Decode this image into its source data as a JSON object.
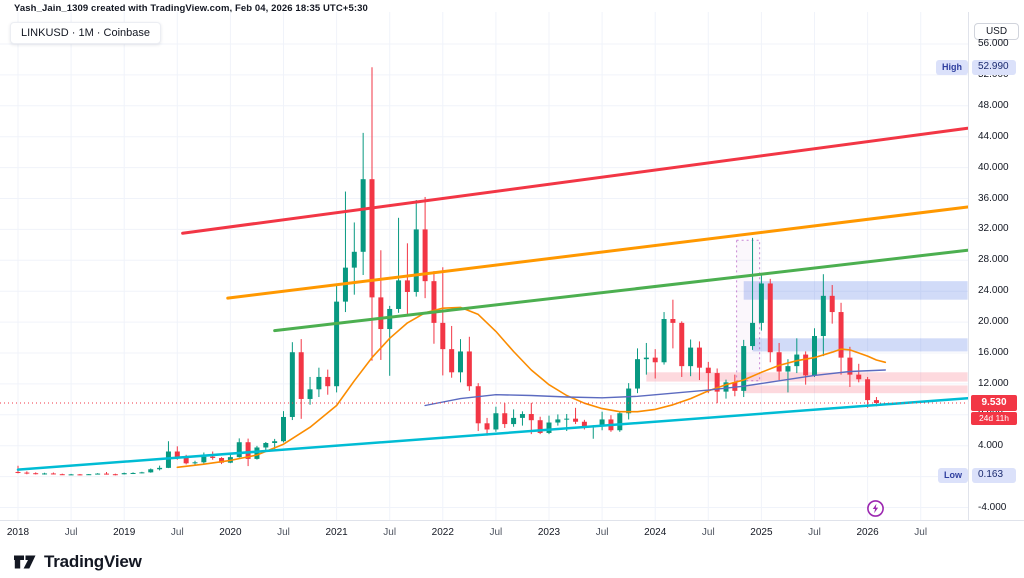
{
  "header": {
    "attribution": "Yash_Jain_1309 created with TradingView.com, Feb 04, 2026 18:35 UTC+5:30"
  },
  "symbol": {
    "label": "LINKUSD · 1M · Coinbase"
  },
  "price_scale": {
    "currency_button": "USD",
    "high_badge": {
      "label": "High",
      "value": "52.990",
      "price": 52.99
    },
    "low_badge": {
      "label": "Low",
      "value": "0.163",
      "price": 0.163
    },
    "last_price_badge": {
      "value": "9.530",
      "price": 9.53,
      "countdown": "24d 11h",
      "color": "#f23645"
    },
    "labels": [
      {
        "text": "56.000",
        "price": 56
      },
      {
        "text": "52.000",
        "price": 52
      },
      {
        "text": "48.000",
        "price": 48
      },
      {
        "text": "44.000",
        "price": 44
      },
      {
        "text": "40.000",
        "price": 40
      },
      {
        "text": "36.000",
        "price": 36
      },
      {
        "text": "32.000",
        "price": 32
      },
      {
        "text": "28.000",
        "price": 28
      },
      {
        "text": "24.000",
        "price": 24
      },
      {
        "text": "20.000",
        "price": 20
      },
      {
        "text": "16.000",
        "price": 16
      },
      {
        "text": "12.000",
        "price": 12
      },
      {
        "text": "8.000",
        "price": 8
      },
      {
        "text": "4.000",
        "price": 4
      },
      {
        "text": "0.000",
        "price": 0
      },
      {
        "text": "-4.000",
        "price": -4
      }
    ]
  },
  "time_axis": {
    "ticks": [
      {
        "label": "2018",
        "m": 0,
        "major": true
      },
      {
        "label": "Jul",
        "m": 6,
        "major": false
      },
      {
        "label": "2019",
        "m": 12,
        "major": true
      },
      {
        "label": "Jul",
        "m": 18,
        "major": false
      },
      {
        "label": "2020",
        "m": 24,
        "major": true
      },
      {
        "label": "Jul",
        "m": 30,
        "major": false
      },
      {
        "label": "2021",
        "m": 36,
        "major": true
      },
      {
        "label": "Jul",
        "m": 42,
        "major": false
      },
      {
        "label": "2022",
        "m": 48,
        "major": true
      },
      {
        "label": "Jul",
        "m": 54,
        "major": false
      },
      {
        "label": "2023",
        "m": 60,
        "major": true
      },
      {
        "label": "Jul",
        "m": 66,
        "major": false
      },
      {
        "label": "2024",
        "m": 72,
        "major": true
      },
      {
        "label": "Jul",
        "m": 78,
        "major": false
      },
      {
        "label": "2025",
        "m": 84,
        "major": true
      },
      {
        "label": "Jul",
        "m": 90,
        "major": false
      },
      {
        "label": "2026",
        "m": 96,
        "major": true
      },
      {
        "label": "Jul",
        "m": 102,
        "major": false
      }
    ]
  },
  "footer": {
    "brand": "TradingView"
  },
  "chart_data": {
    "type": "candlestick",
    "title": "LINKUSD 1M Coinbase",
    "interval": "1M",
    "ylim": [
      -4,
      56
    ],
    "grid": true,
    "colors": {
      "up": "#089981",
      "down": "#f23645",
      "grid": "#f0f3fa",
      "trend_red": "#f23645",
      "trend_orange": "#ff9800",
      "trend_green": "#4caf50",
      "trend_cyan": "#00bcd4",
      "ma_fast": "#fb8c00",
      "ma_slow": "#5c6bc0",
      "zone_blue": "rgba(104,136,232,0.30)",
      "zone_pink": "rgba(247,130,145,0.30)"
    },
    "candles": [
      [
        "2018-01",
        0.6,
        1.4,
        0.42,
        0.52
      ],
      [
        "2018-02",
        0.52,
        0.68,
        0.3,
        0.44
      ],
      [
        "2018-03",
        0.44,
        0.55,
        0.28,
        0.33
      ],
      [
        "2018-04",
        0.33,
        0.5,
        0.26,
        0.41
      ],
      [
        "2018-05",
        0.41,
        0.53,
        0.28,
        0.31
      ],
      [
        "2018-06",
        0.31,
        0.38,
        0.21,
        0.27
      ],
      [
        "2018-07",
        0.27,
        0.35,
        0.22,
        0.29
      ],
      [
        "2018-08",
        0.29,
        0.34,
        0.17,
        0.25
      ],
      [
        "2018-09",
        0.25,
        0.33,
        0.21,
        0.31
      ],
      [
        "2018-10",
        0.31,
        0.45,
        0.28,
        0.39
      ],
      [
        "2018-11",
        0.39,
        0.6,
        0.25,
        0.31
      ],
      [
        "2018-12",
        0.31,
        0.38,
        0.163,
        0.3
      ],
      [
        "2019-01",
        0.3,
        0.52,
        0.28,
        0.45
      ],
      [
        "2019-02",
        0.45,
        0.55,
        0.33,
        0.47
      ],
      [
        "2019-03",
        0.47,
        0.62,
        0.42,
        0.55
      ],
      [
        "2019-04",
        0.55,
        1.05,
        0.5,
        0.95
      ],
      [
        "2019-05",
        0.95,
        1.42,
        0.8,
        1.13
      ],
      [
        "2019-06",
        1.13,
        4.58,
        1.1,
        3.25
      ],
      [
        "2019-07",
        3.25,
        3.92,
        2.18,
        2.45
      ],
      [
        "2019-08",
        2.45,
        2.82,
        1.58,
        1.72
      ],
      [
        "2019-09",
        1.72,
        2.05,
        1.52,
        1.85
      ],
      [
        "2019-10",
        1.85,
        3.12,
        1.6,
        2.58
      ],
      [
        "2019-11",
        2.58,
        3.25,
        2.18,
        2.41
      ],
      [
        "2019-12",
        2.41,
        2.52,
        1.62,
        1.8
      ],
      [
        "2020-01",
        1.8,
        2.88,
        1.74,
        2.52
      ],
      [
        "2020-02",
        2.52,
        4.95,
        2.46,
        4.45
      ],
      [
        "2020-03",
        4.45,
        4.92,
        1.36,
        2.29
      ],
      [
        "2020-04",
        2.29,
        3.98,
        2.2,
        3.77
      ],
      [
        "2020-05",
        3.77,
        4.48,
        3.28,
        4.35
      ],
      [
        "2020-06",
        4.35,
        4.88,
        3.58,
        4.58
      ],
      [
        "2020-07",
        4.58,
        8.48,
        4.42,
        7.72
      ],
      [
        "2020-08",
        7.72,
        17.4,
        7.32,
        16.1
      ],
      [
        "2020-09",
        16.1,
        17.8,
        7.48,
        10.05
      ],
      [
        "2020-10",
        10.05,
        12.9,
        9.3,
        11.3
      ],
      [
        "2020-11",
        11.3,
        14.1,
        10.3,
        12.9
      ],
      [
        "2020-12",
        12.9,
        13.85,
        10.6,
        11.7
      ],
      [
        "2021-01",
        11.7,
        25.0,
        10.9,
        22.65
      ],
      [
        "2021-02",
        22.65,
        36.9,
        21.3,
        27.05
      ],
      [
        "2021-03",
        27.05,
        32.9,
        23.55,
        29.1
      ],
      [
        "2021-04",
        29.1,
        44.5,
        26.1,
        38.5
      ],
      [
        "2021-05",
        38.5,
        52.99,
        15.0,
        23.2
      ],
      [
        "2021-06",
        23.2,
        29.3,
        15.1,
        19.1
      ],
      [
        "2021-07",
        19.1,
        22.1,
        13.05,
        21.7
      ],
      [
        "2021-08",
        21.7,
        33.5,
        21.2,
        25.4
      ],
      [
        "2021-09",
        25.4,
        30.2,
        20.8,
        23.9
      ],
      [
        "2021-10",
        23.9,
        35.8,
        23.3,
        32.0
      ],
      [
        "2021-11",
        32.0,
        36.2,
        23.1,
        25.3
      ],
      [
        "2021-12",
        25.3,
        26.6,
        17.2,
        19.9
      ],
      [
        "2022-01",
        19.9,
        27.1,
        13.1,
        16.5
      ],
      [
        "2022-02",
        16.5,
        19.5,
        12.8,
        13.5
      ],
      [
        "2022-03",
        13.5,
        17.8,
        12.2,
        16.2
      ],
      [
        "2022-04",
        16.2,
        18.1,
        11.1,
        11.7
      ],
      [
        "2022-05",
        11.7,
        12.1,
        5.9,
        6.9
      ],
      [
        "2022-06",
        6.9,
        7.6,
        5.3,
        6.1
      ],
      [
        "2022-07",
        6.1,
        9.05,
        5.8,
        8.2
      ],
      [
        "2022-08",
        8.2,
        9.52,
        6.3,
        6.8
      ],
      [
        "2022-09",
        6.8,
        8.7,
        6.45,
        7.6
      ],
      [
        "2022-10",
        7.6,
        8.45,
        6.6,
        8.1
      ],
      [
        "2022-11",
        8.1,
        9.55,
        5.5,
        7.3
      ],
      [
        "2022-12",
        7.3,
        7.75,
        5.5,
        5.65
      ],
      [
        "2023-01",
        5.65,
        7.9,
        5.5,
        7.0
      ],
      [
        "2023-02",
        7.0,
        8.05,
        6.6,
        7.4
      ],
      [
        "2023-03",
        7.4,
        8.1,
        5.9,
        7.5
      ],
      [
        "2023-04",
        7.5,
        8.9,
        6.8,
        7.1
      ],
      [
        "2023-05",
        7.1,
        7.35,
        6.1,
        6.4
      ],
      [
        "2023-06",
        6.4,
        6.65,
        4.9,
        6.5
      ],
      [
        "2023-07",
        6.5,
        8.4,
        6.0,
        7.4
      ],
      [
        "2023-08",
        7.4,
        7.95,
        5.8,
        6.0
      ],
      [
        "2023-09",
        6.0,
        8.4,
        5.8,
        8.2
      ],
      [
        "2023-10",
        8.2,
        12.1,
        7.4,
        11.4
      ],
      [
        "2023-11",
        11.4,
        16.6,
        10.8,
        15.2
      ],
      [
        "2023-12",
        15.2,
        17.3,
        13.2,
        15.4
      ],
      [
        "2024-01",
        15.4,
        16.5,
        12.7,
        14.8
      ],
      [
        "2024-02",
        14.8,
        21.3,
        14.5,
        20.4
      ],
      [
        "2024-03",
        20.4,
        22.9,
        16.6,
        19.9
      ],
      [
        "2024-04",
        19.9,
        20.1,
        12.9,
        14.3
      ],
      [
        "2024-05",
        14.3,
        17.75,
        13.0,
        16.7
      ],
      [
        "2024-06",
        16.7,
        17.5,
        12.5,
        14.1
      ],
      [
        "2024-07",
        14.1,
        14.85,
        10.8,
        13.4
      ],
      [
        "2024-08",
        13.4,
        14.0,
        9.5,
        11.0
      ],
      [
        "2024-09",
        11.0,
        12.55,
        10.1,
        12.2
      ],
      [
        "2024-10",
        12.2,
        13.2,
        10.4,
        11.1
      ],
      [
        "2024-11",
        11.1,
        17.7,
        10.3,
        16.9
      ],
      [
        "2024-12",
        16.9,
        30.9,
        16.4,
        19.9
      ],
      [
        "2025-01",
        19.9,
        26.3,
        18.9,
        25.0
      ],
      [
        "2025-02",
        25.0,
        25.6,
        14.8,
        16.1
      ],
      [
        "2025-03",
        16.1,
        17.3,
        12.5,
        13.6
      ],
      [
        "2025-04",
        13.6,
        15.2,
        10.9,
        14.3
      ],
      [
        "2025-05",
        14.3,
        17.9,
        13.4,
        15.8
      ],
      [
        "2025-06",
        15.8,
        16.2,
        11.9,
        13.1
      ],
      [
        "2025-07",
        13.1,
        19.2,
        12.9,
        18.2
      ],
      [
        "2025-08",
        18.2,
        26.2,
        15.6,
        23.4
      ],
      [
        "2025-09",
        23.4,
        24.8,
        19.8,
        21.3
      ],
      [
        "2025-10",
        21.3,
        22.5,
        13.2,
        15.4
      ],
      [
        "2025-11",
        15.4,
        16.8,
        11.6,
        13.2
      ],
      [
        "2025-12",
        13.2,
        14.6,
        12.2,
        12.6
      ],
      [
        "2026-01",
        12.6,
        12.9,
        8.9,
        9.9
      ],
      [
        "2026-02",
        9.9,
        10.3,
        9.1,
        9.53
      ]
    ],
    "trendlines": [
      {
        "name": "channel-top-red",
        "colorKey": "trend_red",
        "width": 3,
        "from": [
          18.6,
          31.5
        ],
        "to": [
          107.3,
          45.1
        ]
      },
      {
        "name": "channel-mid-orange",
        "colorKey": "trend_orange",
        "width": 3,
        "from": [
          23.7,
          23.1
        ],
        "to": [
          107.3,
          34.9
        ]
      },
      {
        "name": "channel-mid-green",
        "colorKey": "trend_green",
        "width": 3,
        "from": [
          29.0,
          18.9
        ],
        "to": [
          107.3,
          29.3
        ]
      },
      {
        "name": "support-cyan",
        "colorKey": "trend_cyan",
        "width": 2.5,
        "from": [
          0,
          0.9
        ],
        "to": [
          107.3,
          10.15
        ]
      }
    ],
    "ma_lines": [
      {
        "name": "ma-fast-orange",
        "colorKey": "ma_fast",
        "width": 1.6,
        "points": [
          [
            18,
            1.2
          ],
          [
            21,
            1.6
          ],
          [
            24,
            2.1
          ],
          [
            27,
            2.8
          ],
          [
            30,
            4.2
          ],
          [
            33,
            6.4
          ],
          [
            36,
            9.2
          ],
          [
            38,
            12.4
          ],
          [
            40,
            15.4
          ],
          [
            42,
            17.9
          ],
          [
            44,
            19.9
          ],
          [
            46,
            21.2
          ],
          [
            48,
            21.8
          ],
          [
            50,
            21.9
          ],
          [
            52,
            21.0
          ],
          [
            54,
            18.8
          ],
          [
            56,
            16.2
          ],
          [
            58,
            13.8
          ],
          [
            60,
            11.9
          ],
          [
            62,
            10.5
          ],
          [
            64,
            9.5
          ],
          [
            66,
            8.8
          ],
          [
            68,
            8.4
          ],
          [
            70,
            8.4
          ],
          [
            72,
            8.7
          ],
          [
            74,
            9.3
          ],
          [
            76,
            10.1
          ],
          [
            78,
            11.1
          ],
          [
            80,
            11.9
          ],
          [
            82,
            12.5
          ],
          [
            84,
            13.5
          ],
          [
            86,
            14.4
          ],
          [
            88,
            15.0
          ],
          [
            90,
            15.4
          ],
          [
            92,
            16.1
          ],
          [
            93,
            16.5
          ],
          [
            94,
            16.4
          ],
          [
            95,
            16.0
          ],
          [
            96,
            15.6
          ],
          [
            97,
            15.1
          ],
          [
            98,
            14.8
          ]
        ]
      },
      {
        "name": "ma-slow-purple",
        "colorKey": "ma_slow",
        "width": 1.4,
        "points": [
          [
            46,
            9.2
          ],
          [
            50,
            10.1
          ],
          [
            54,
            10.6
          ],
          [
            58,
            10.5
          ],
          [
            62,
            10.3
          ],
          [
            66,
            10.2
          ],
          [
            70,
            10.4
          ],
          [
            74,
            10.8
          ],
          [
            78,
            11.2
          ],
          [
            82,
            11.7
          ],
          [
            86,
            12.4
          ],
          [
            90,
            13.1
          ],
          [
            94,
            13.6
          ],
          [
            98,
            13.8
          ]
        ]
      }
    ],
    "zones": [
      {
        "name": "resistance-zone-24",
        "colorKey": "zone_blue",
        "from_m": 82,
        "to_m": 107.3,
        "top": 25.3,
        "bottom": 22.9
      },
      {
        "name": "resistance-zone-17",
        "colorKey": "zone_blue",
        "from_m": 83,
        "to_m": 107.3,
        "top": 17.9,
        "bottom": 16.2
      },
      {
        "name": "support-zone-13",
        "colorKey": "zone_pink",
        "from_m": 71,
        "to_m": 107.3,
        "top": 13.5,
        "bottom": 12.3
      },
      {
        "name": "support-zone-11",
        "colorKey": "zone_pink",
        "from_m": 82,
        "to_m": 107.3,
        "top": 11.8,
        "bottom": 10.8
      }
    ],
    "dashed_box": {
      "name": "highlight-range-box",
      "from_m": 81.2,
      "to_m": 83.8,
      "top": 30.6,
      "bottom": 12.4,
      "stroke": "rgba(156,39,176,0.55)",
      "fill": "rgba(156,39,176,0.04)"
    },
    "price_line": {
      "price": 9.53
    }
  }
}
